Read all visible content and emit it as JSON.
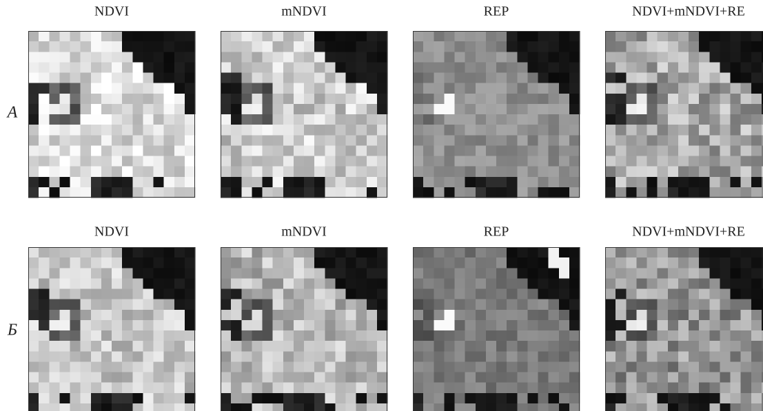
{
  "rows": [
    {
      "label": "A",
      "panels": [
        {
          "title": "NDVI"
        },
        {
          "title": "mNDVI"
        },
        {
          "title": "REP"
        },
        {
          "title": "NDVI+mNDVI+RE"
        }
      ]
    },
    {
      "label": "Б",
      "panels": [
        {
          "title": "NDVI"
        },
        {
          "title": "mNDVI"
        },
        {
          "title": "REP"
        },
        {
          "title": "NDVI+mNDVI+RE"
        }
      ]
    }
  ]
}
